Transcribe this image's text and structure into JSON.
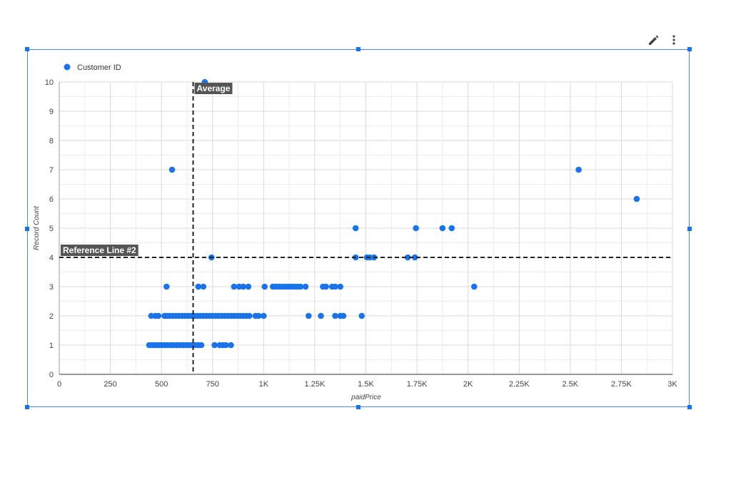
{
  "toolbar": {
    "edit_icon": "pencil-icon",
    "more_icon": "more-vert-icon"
  },
  "colors": {
    "accent": "#1a73e8",
    "points": "#1a73e8",
    "reference": "#222222",
    "label_bg": "#555555",
    "grid": "#d9d9d9"
  },
  "chart_data": {
    "type": "scatter",
    "legend": {
      "label": "Customer ID",
      "placement": "top-left"
    },
    "xlabel": "paidPrice",
    "ylabel": "Record Count",
    "xlim": [
      0,
      3000
    ],
    "ylim": [
      0,
      10
    ],
    "x_ticks": [
      0,
      250,
      500,
      750,
      1000,
      1250,
      1500,
      1750,
      2000,
      2250,
      2500,
      2750,
      3000
    ],
    "x_tick_labels": [
      "0",
      "250",
      "500",
      "750",
      "1K",
      "1.25K",
      "1.5K",
      "1.75K",
      "2K",
      "2.25K",
      "2.5K",
      "2.75K",
      "3K"
    ],
    "y_ticks": [
      0,
      1,
      2,
      3,
      4,
      5,
      6,
      7,
      8,
      9,
      10
    ],
    "y_tick_labels": [
      "0",
      "1",
      "2",
      "3",
      "4",
      "5",
      "6",
      "7",
      "8",
      "9",
      "10"
    ],
    "grid": true,
    "reference_lines": [
      {
        "label": "Average",
        "orientation": "vertical",
        "value": 655
      },
      {
        "label": "Reference Line #2",
        "orientation": "horizontal",
        "value": 4
      }
    ],
    "series": [
      {
        "name": "Customer ID",
        "points": [
          [
            712,
            10
          ],
          [
            552,
            7
          ],
          [
            2541,
            7
          ],
          [
            2825,
            6
          ],
          [
            1450,
            5
          ],
          [
            1745,
            5
          ],
          [
            1875,
            5
          ],
          [
            1920,
            5
          ],
          [
            745,
            4
          ],
          [
            1450,
            4
          ],
          [
            1505,
            4
          ],
          [
            1520,
            4
          ],
          [
            1540,
            4
          ],
          [
            1705,
            4
          ],
          [
            1740,
            4
          ],
          [
            525,
            3
          ],
          [
            680,
            3
          ],
          [
            705,
            3
          ],
          [
            855,
            3
          ],
          [
            880,
            3
          ],
          [
            900,
            3
          ],
          [
            925,
            3
          ],
          [
            1005,
            3
          ],
          [
            1045,
            3
          ],
          [
            1060,
            3
          ],
          [
            1075,
            3
          ],
          [
            1090,
            3
          ],
          [
            1105,
            3
          ],
          [
            1120,
            3
          ],
          [
            1135,
            3
          ],
          [
            1150,
            3
          ],
          [
            1165,
            3
          ],
          [
            1180,
            3
          ],
          [
            1205,
            3
          ],
          [
            1290,
            3
          ],
          [
            1305,
            3
          ],
          [
            1335,
            3
          ],
          [
            1350,
            3
          ],
          [
            1375,
            3
          ],
          [
            2030,
            3
          ],
          [
            450,
            2
          ],
          [
            470,
            2
          ],
          [
            485,
            2
          ],
          [
            515,
            2
          ],
          [
            525,
            2
          ],
          [
            540,
            2
          ],
          [
            555,
            2
          ],
          [
            570,
            2
          ],
          [
            585,
            2
          ],
          [
            600,
            2
          ],
          [
            615,
            2
          ],
          [
            630,
            2
          ],
          [
            645,
            2
          ],
          [
            660,
            2
          ],
          [
            675,
            2
          ],
          [
            690,
            2
          ],
          [
            705,
            2
          ],
          [
            720,
            2
          ],
          [
            735,
            2
          ],
          [
            750,
            2
          ],
          [
            765,
            2
          ],
          [
            780,
            2
          ],
          [
            795,
            2
          ],
          [
            810,
            2
          ],
          [
            825,
            2
          ],
          [
            840,
            2
          ],
          [
            855,
            2
          ],
          [
            870,
            2
          ],
          [
            885,
            2
          ],
          [
            900,
            2
          ],
          [
            915,
            2
          ],
          [
            930,
            2
          ],
          [
            960,
            2
          ],
          [
            975,
            2
          ],
          [
            1000,
            2
          ],
          [
            1220,
            2
          ],
          [
            1280,
            2
          ],
          [
            1350,
            2
          ],
          [
            1375,
            2
          ],
          [
            1390,
            2
          ],
          [
            1480,
            2
          ],
          [
            440,
            1
          ],
          [
            455,
            1
          ],
          [
            470,
            1
          ],
          [
            485,
            1
          ],
          [
            500,
            1
          ],
          [
            515,
            1
          ],
          [
            530,
            1
          ],
          [
            545,
            1
          ],
          [
            560,
            1
          ],
          [
            575,
            1
          ],
          [
            590,
            1
          ],
          [
            605,
            1
          ],
          [
            620,
            1
          ],
          [
            635,
            1
          ],
          [
            650,
            1
          ],
          [
            665,
            1
          ],
          [
            680,
            1
          ],
          [
            695,
            1
          ],
          [
            760,
            1
          ],
          [
            785,
            1
          ],
          [
            800,
            1
          ],
          [
            815,
            1
          ],
          [
            840,
            1
          ]
        ]
      }
    ]
  }
}
